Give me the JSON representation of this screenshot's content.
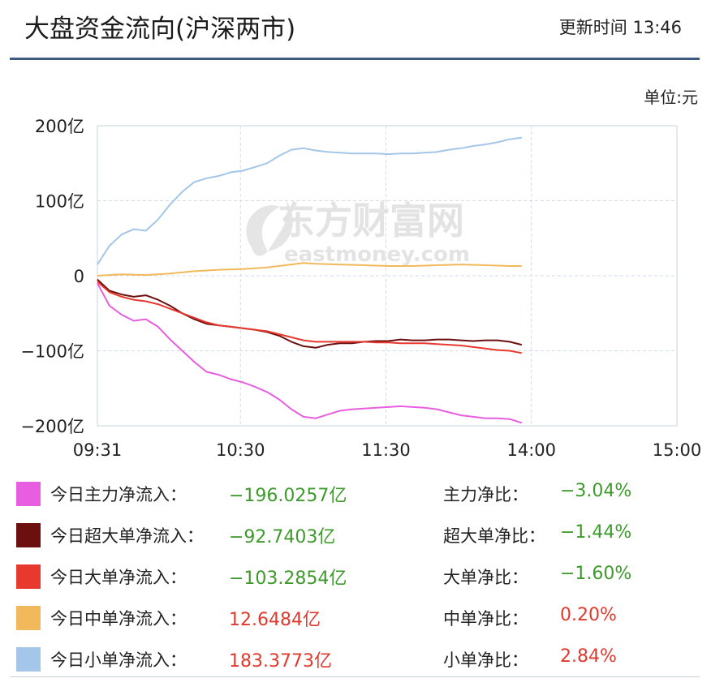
{
  "header": {
    "title": "大盘资金流向(沪深两市)",
    "update_time": "更新时间 13:46"
  },
  "unit_label": "单位:元",
  "watermark": {
    "cn": "东方财富网",
    "en": "eastmoney.com"
  },
  "legend": [
    {
      "label": "今日主力净流入：",
      "value": "−196.0257亿",
      "ratio_label": "主力净比：",
      "ratio": "−3.04%",
      "color": "#e85ee0",
      "sign": "neg"
    },
    {
      "label": "今日超大单净流入：",
      "value": "−92.7403亿",
      "ratio_label": "超大单净比：",
      "ratio": "−1.44%",
      "color": "#6b0f0f",
      "sign": "neg"
    },
    {
      "label": "今日大单净流入：",
      "value": "−103.2854亿",
      "ratio_label": "大单净比：",
      "ratio": "−1.60%",
      "color": "#e8392e",
      "sign": "neg"
    },
    {
      "label": "今日中单净流入：",
      "value": "12.6484亿",
      "ratio_label": "中单净比：",
      "ratio": "0.20%",
      "color": "#f2b95c",
      "sign": "pos"
    },
    {
      "label": "今日小单净流入：",
      "value": "183.3773亿",
      "ratio_label": "小单净比：",
      "ratio": "2.84%",
      "color": "#a4c6e8",
      "sign": "pos"
    }
  ],
  "chart_data": {
    "type": "line",
    "title": "大盘资金流向(沪深两市)",
    "xlabel": "",
    "ylabel": "",
    "x_ticks": [
      "09:31",
      "10:30",
      "11:30",
      "14:00",
      "15:00"
    ],
    "x_tick_pos": [
      0,
      59,
      119,
      179,
      239
    ],
    "y_ticks": [
      200,
      100,
      0,
      -100,
      -200
    ],
    "y_tick_labels": [
      "200亿",
      "100亿",
      "0",
      "−100亿",
      "−200亿"
    ],
    "ylim": [
      -200,
      200
    ],
    "xlim": [
      0,
      239
    ],
    "grid": true,
    "series": [
      {
        "name": "今日小单净流入",
        "color": "#a4c6e8",
        "points": [
          [
            0,
            15
          ],
          [
            5,
            40
          ],
          [
            10,
            55
          ],
          [
            15,
            62
          ],
          [
            20,
            60
          ],
          [
            25,
            75
          ],
          [
            30,
            95
          ],
          [
            35,
            112
          ],
          [
            40,
            125
          ],
          [
            45,
            130
          ],
          [
            50,
            133
          ],
          [
            55,
            138
          ],
          [
            60,
            140
          ],
          [
            65,
            145
          ],
          [
            70,
            150
          ],
          [
            75,
            160
          ],
          [
            80,
            168
          ],
          [
            85,
            170
          ],
          [
            90,
            167
          ],
          [
            95,
            165
          ],
          [
            100,
            164
          ],
          [
            105,
            163
          ],
          [
            110,
            163
          ],
          [
            115,
            163
          ],
          [
            120,
            162
          ],
          [
            125,
            163
          ],
          [
            130,
            163
          ],
          [
            135,
            164
          ],
          [
            140,
            165
          ],
          [
            145,
            168
          ],
          [
            150,
            170
          ],
          [
            155,
            173
          ],
          [
            160,
            175
          ],
          [
            165,
            178
          ],
          [
            170,
            182
          ],
          [
            175,
            184
          ]
        ]
      },
      {
        "name": "今日中单净流入",
        "color": "#f2b95c",
        "points": [
          [
            0,
            0
          ],
          [
            10,
            2
          ],
          [
            20,
            1
          ],
          [
            30,
            3
          ],
          [
            40,
            6
          ],
          [
            50,
            8
          ],
          [
            60,
            9
          ],
          [
            70,
            11
          ],
          [
            80,
            15
          ],
          [
            85,
            17
          ],
          [
            90,
            16
          ],
          [
            100,
            15
          ],
          [
            110,
            14
          ],
          [
            120,
            13
          ],
          [
            130,
            13
          ],
          [
            140,
            14
          ],
          [
            150,
            15
          ],
          [
            160,
            14
          ],
          [
            170,
            13
          ],
          [
            175,
            13
          ]
        ]
      },
      {
        "name": "今日超大单净流入",
        "color": "#6b0f0f",
        "points": [
          [
            0,
            -5
          ],
          [
            5,
            -20
          ],
          [
            10,
            -25
          ],
          [
            15,
            -28
          ],
          [
            20,
            -26
          ],
          [
            25,
            -32
          ],
          [
            30,
            -40
          ],
          [
            35,
            -50
          ],
          [
            40,
            -58
          ],
          [
            45,
            -64
          ],
          [
            50,
            -66
          ],
          [
            55,
            -68
          ],
          [
            60,
            -70
          ],
          [
            65,
            -72
          ],
          [
            70,
            -75
          ],
          [
            75,
            -80
          ],
          [
            80,
            -88
          ],
          [
            85,
            -94
          ],
          [
            90,
            -96
          ],
          [
            95,
            -92
          ],
          [
            100,
            -90
          ],
          [
            105,
            -90
          ],
          [
            110,
            -88
          ],
          [
            115,
            -87
          ],
          [
            120,
            -87
          ],
          [
            125,
            -85
          ],
          [
            130,
            -86
          ],
          [
            135,
            -86
          ],
          [
            140,
            -85
          ],
          [
            145,
            -85
          ],
          [
            150,
            -86
          ],
          [
            155,
            -87
          ],
          [
            160,
            -86
          ],
          [
            165,
            -86
          ],
          [
            170,
            -88
          ],
          [
            175,
            -92
          ]
        ]
      },
      {
        "name": "今日大单净流入",
        "color": "#e8392e",
        "points": [
          [
            0,
            -8
          ],
          [
            5,
            -22
          ],
          [
            10,
            -28
          ],
          [
            15,
            -32
          ],
          [
            20,
            -34
          ],
          [
            25,
            -38
          ],
          [
            30,
            -44
          ],
          [
            35,
            -50
          ],
          [
            40,
            -56
          ],
          [
            45,
            -62
          ],
          [
            50,
            -66
          ],
          [
            55,
            -68
          ],
          [
            60,
            -70
          ],
          [
            65,
            -72
          ],
          [
            70,
            -74
          ],
          [
            75,
            -78
          ],
          [
            80,
            -82
          ],
          [
            85,
            -86
          ],
          [
            90,
            -88
          ],
          [
            95,
            -88
          ],
          [
            100,
            -88
          ],
          [
            105,
            -88
          ],
          [
            110,
            -88
          ],
          [
            115,
            -89
          ],
          [
            120,
            -89
          ],
          [
            125,
            -90
          ],
          [
            130,
            -90
          ],
          [
            135,
            -90
          ],
          [
            140,
            -91
          ],
          [
            145,
            -92
          ],
          [
            150,
            -93
          ],
          [
            155,
            -95
          ],
          [
            160,
            -97
          ],
          [
            165,
            -99
          ],
          [
            170,
            -100
          ],
          [
            175,
            -103
          ]
        ]
      },
      {
        "name": "今日主力净流入",
        "color": "#e85ee0",
        "points": [
          [
            0,
            -10
          ],
          [
            5,
            -40
          ],
          [
            10,
            -52
          ],
          [
            15,
            -60
          ],
          [
            20,
            -58
          ],
          [
            25,
            -68
          ],
          [
            30,
            -85
          ],
          [
            35,
            -100
          ],
          [
            40,
            -115
          ],
          [
            45,
            -128
          ],
          [
            50,
            -132
          ],
          [
            55,
            -138
          ],
          [
            60,
            -142
          ],
          [
            65,
            -148
          ],
          [
            70,
            -155
          ],
          [
            75,
            -165
          ],
          [
            80,
            -178
          ],
          [
            85,
            -188
          ],
          [
            90,
            -190
          ],
          [
            95,
            -185
          ],
          [
            100,
            -180
          ],
          [
            105,
            -178
          ],
          [
            110,
            -177
          ],
          [
            115,
            -176
          ],
          [
            120,
            -175
          ],
          [
            125,
            -174
          ],
          [
            130,
            -175
          ],
          [
            135,
            -176
          ],
          [
            140,
            -178
          ],
          [
            145,
            -182
          ],
          [
            150,
            -186
          ],
          [
            155,
            -188
          ],
          [
            160,
            -190
          ],
          [
            165,
            -190
          ],
          [
            170,
            -191
          ],
          [
            175,
            -196
          ]
        ]
      }
    ]
  }
}
